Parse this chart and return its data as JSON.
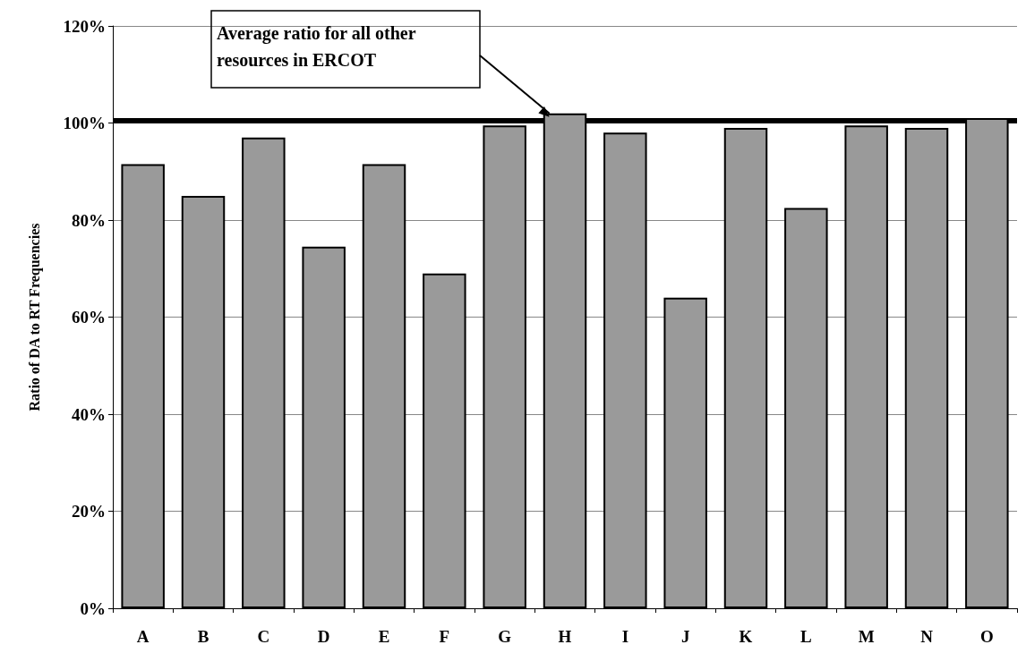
{
  "chart_data": {
    "type": "bar",
    "ylabel": "Ratio of DA to RT Frequencies",
    "categories": [
      "A",
      "B",
      "C",
      "D",
      "E",
      "F",
      "G",
      "H",
      "I",
      "J",
      "K",
      "L",
      "M",
      "N",
      "O"
    ],
    "values": [
      91.5,
      85,
      97,
      74.5,
      91.5,
      69,
      99.5,
      102,
      98,
      64,
      99,
      82.5,
      99.5,
      99,
      101
    ],
    "color": "#9a9a9a",
    "ylim": [
      0,
      120
    ],
    "yticks": [
      {
        "value": 0,
        "label": "0%"
      },
      {
        "value": 20,
        "label": "20%"
      },
      {
        "value": 40,
        "label": "40%"
      },
      {
        "value": 60,
        "label": "60%"
      },
      {
        "value": 80,
        "label": "80%"
      },
      {
        "value": 100,
        "label": "100%"
      },
      {
        "value": 120,
        "label": "120%"
      }
    ],
    "grid": "y",
    "ref_lines": [
      {
        "axis": "y",
        "value": 100.5,
        "label": "Average ratio for all other resources in ERCOT",
        "color": "#000000"
      }
    ]
  }
}
